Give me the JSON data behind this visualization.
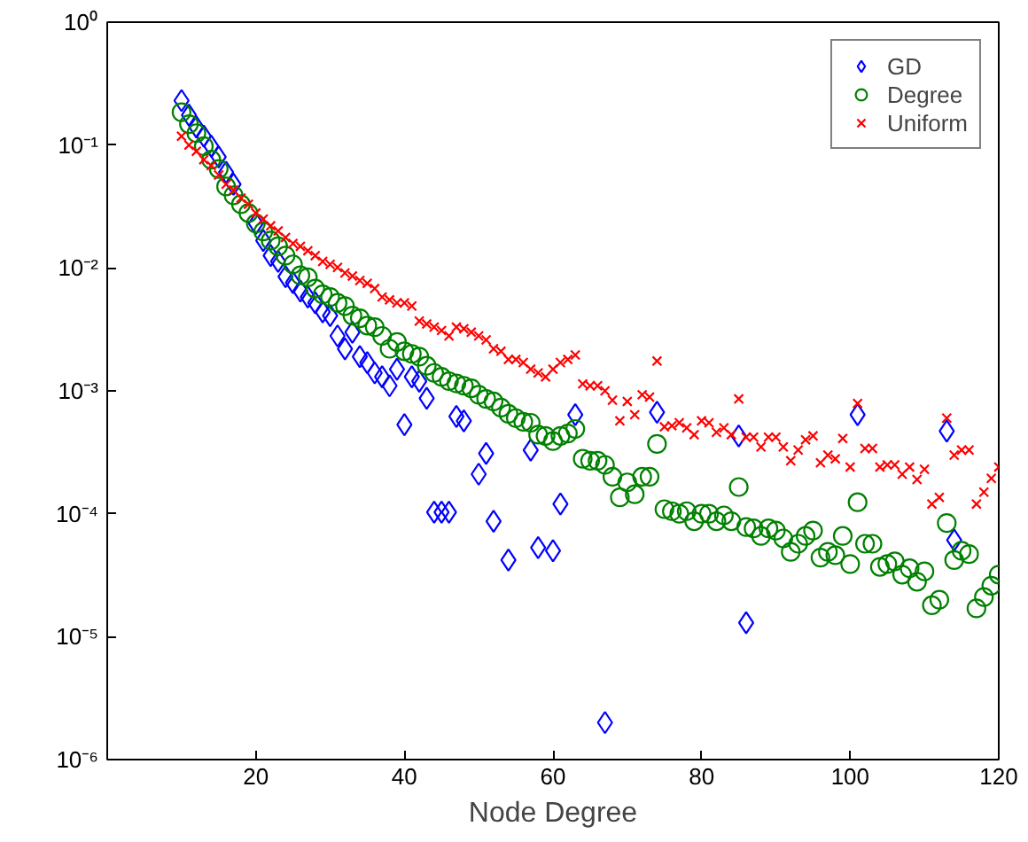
{
  "chart_data": {
    "type": "scatter",
    "xlabel": "Node Degree",
    "log": "y",
    "xlim": [
      0,
      120
    ],
    "xticks": [
      20,
      40,
      60,
      80,
      100,
      120
    ],
    "ylim": [
      1e-06,
      1
    ],
    "yticks": [
      {
        "value": 1e-06,
        "label": "10⁻⁶"
      },
      {
        "value": 1e-05,
        "label": "10⁻⁵"
      },
      {
        "value": 0.0001,
        "label": "10⁻⁴"
      },
      {
        "value": 0.001,
        "label": "10⁻³"
      },
      {
        "value": 0.01,
        "label": "10⁻²"
      },
      {
        "value": 0.1,
        "label": "10⁻¹"
      },
      {
        "value": 1,
        "label": "10⁰"
      }
    ],
    "grid": false,
    "legend": "top right",
    "series": [
      {
        "name": "GD",
        "color": "#0000ff",
        "marker": "diamond",
        "x": [
          10,
          11,
          12,
          13,
          14,
          15,
          16,
          17,
          18,
          19,
          20,
          21,
          22,
          23,
          24,
          25,
          26,
          27,
          28,
          29,
          30,
          31,
          32,
          33,
          34,
          35,
          36,
          37,
          38,
          39,
          40,
          41,
          42,
          43,
          44,
          45,
          46,
          47,
          48,
          50,
          51,
          52,
          54,
          57,
          58,
          60,
          61,
          63,
          67,
          74,
          85,
          86,
          101,
          113,
          114
        ],
        "values": [
          0.23,
          0.175,
          0.14,
          0.118,
          0.098,
          0.08,
          0.06,
          0.048,
          null,
          null,
          0.023,
          0.0167,
          0.0126,
          0.0113,
          0.0085,
          0.0076,
          0.0065,
          0.0058,
          0.0052,
          0.0044,
          0.0041,
          0.0028,
          0.0022,
          0.003,
          0.0019,
          0.0017,
          0.0014,
          0.0013,
          0.0011,
          0.0015,
          0.00053,
          0.0013,
          0.0012,
          0.00087,
          0.000103,
          0.000103,
          0.000103,
          0.00062,
          0.00057,
          0.00021,
          0.00031,
          8.7e-05,
          4.2e-05,
          0.00033,
          5.3e-05,
          5e-05,
          0.00012,
          0.00064,
          2e-06,
          0.00067,
          0.00043,
          1.3e-05,
          0.00064,
          0.00047,
          6.1e-05
        ]
      },
      {
        "name": "Degree",
        "color": "#008000",
        "marker": "circle",
        "x": [
          10,
          11,
          12,
          13,
          14,
          15,
          16,
          17,
          18,
          19,
          20,
          21,
          22,
          23,
          24,
          25,
          26,
          27,
          28,
          29,
          30,
          31,
          32,
          33,
          34,
          35,
          36,
          37,
          38,
          39,
          40,
          41,
          42,
          43,
          44,
          45,
          46,
          47,
          48,
          49,
          50,
          51,
          52,
          53,
          54,
          55,
          56,
          57,
          58,
          59,
          60,
          61,
          62,
          63,
          64,
          65,
          66,
          67,
          68,
          69,
          70,
          71,
          72,
          73,
          74,
          75,
          76,
          77,
          78,
          79,
          80,
          81,
          82,
          83,
          84,
          85,
          86,
          87,
          88,
          89,
          90,
          91,
          92,
          93,
          94,
          95,
          96,
          97,
          98,
          99,
          100,
          101,
          102,
          103,
          104,
          105,
          106,
          107,
          108,
          109,
          110,
          111,
          112,
          113,
          114,
          115,
          116,
          117,
          118,
          119,
          120
        ],
        "values": [
          0.185,
          0.148,
          0.125,
          0.098,
          0.076,
          0.064,
          0.046,
          0.039,
          0.033,
          0.028,
          0.023,
          0.0198,
          0.0167,
          0.015,
          0.0126,
          0.0107,
          0.0087,
          0.0084,
          0.0068,
          0.0061,
          0.0058,
          0.0052,
          0.0049,
          0.0041,
          0.0039,
          0.0034,
          0.0033,
          0.0028,
          0.0022,
          0.0025,
          0.0021,
          0.002,
          0.0019,
          0.0016,
          0.0014,
          0.0013,
          0.0012,
          0.00115,
          0.0011,
          0.00105,
          0.00093,
          0.00086,
          0.00082,
          0.00073,
          0.00065,
          0.0006,
          0.00056,
          0.00055,
          0.00044,
          0.00043,
          0.00039,
          0.00043,
          0.00045,
          0.00049,
          0.00028,
          0.00027,
          0.00027,
          0.00025,
          0.0002,
          0.000136,
          0.00018,
          0.000144,
          0.0002,
          0.0002,
          0.00037,
          0.000109,
          0.000105,
          0.0001,
          0.000105,
          8.7e-05,
          0.0001,
          0.0001,
          8.7e-05,
          9.7e-05,
          8.7e-05,
          0.000165,
          7.8e-05,
          7.6e-05,
          6.6e-05,
          7.6e-05,
          7.3e-05,
          6.3e-05,
          4.9e-05,
          5.7e-05,
          6.6e-05,
          7.3e-05,
          4.4e-05,
          4.9e-05,
          4.6e-05,
          6.6e-05,
          3.9e-05,
          0.000124,
          5.7e-05,
          5.7e-05,
          3.7e-05,
          3.9e-05,
          4.1e-05,
          3.2e-05,
          3.6e-05,
          2.8e-05,
          3.4e-05,
          1.8e-05,
          2e-05,
          8.4e-05,
          4.2e-05,
          5e-05,
          4.7e-05,
          1.7e-05,
          2.1e-05,
          2.6e-05,
          3.2e-05
        ]
      },
      {
        "name": "Uniform",
        "color": "#ff0000",
        "marker": "cross",
        "x": [
          10,
          11,
          12,
          13,
          14,
          15,
          16,
          17,
          18,
          19,
          20,
          21,
          22,
          23,
          24,
          25,
          26,
          27,
          28,
          29,
          30,
          31,
          32,
          33,
          34,
          35,
          36,
          37,
          38,
          39,
          40,
          41,
          42,
          43,
          44,
          45,
          46,
          47,
          48,
          49,
          50,
          51,
          52,
          53,
          54,
          55,
          56,
          57,
          58,
          59,
          60,
          61,
          62,
          63,
          64,
          65,
          66,
          67,
          68,
          69,
          70,
          71,
          72,
          73,
          74,
          75,
          76,
          77,
          78,
          79,
          80,
          81,
          82,
          83,
          84,
          85,
          86,
          87,
          88,
          89,
          90,
          91,
          92,
          93,
          94,
          95,
          96,
          97,
          98,
          99,
          100,
          101,
          102,
          103,
          104,
          105,
          106,
          107,
          108,
          109,
          110,
          111,
          112,
          113,
          114,
          115,
          116,
          117,
          118,
          119,
          120
        ],
        "values": [
          0.118,
          0.1,
          0.089,
          0.076,
          0.068,
          0.057,
          0.048,
          0.043,
          0.037,
          0.033,
          0.028,
          0.025,
          0.022,
          0.02,
          0.0177,
          0.0158,
          0.015,
          0.0138,
          0.0126,
          0.0113,
          0.0107,
          0.0101,
          0.0091,
          0.0086,
          0.0079,
          0.0075,
          0.0068,
          0.0058,
          0.0055,
          0.0052,
          0.0052,
          0.0049,
          0.0037,
          0.0035,
          0.0033,
          0.0031,
          0.0028,
          0.0033,
          0.0032,
          0.003,
          0.0028,
          0.0026,
          0.0022,
          0.0021,
          0.0018,
          0.0018,
          0.0017,
          0.0015,
          0.0014,
          0.0013,
          0.0015,
          0.0017,
          0.0018,
          0.00196,
          0.00114,
          0.0011,
          0.0011,
          0.001,
          0.00084,
          0.00057,
          0.00082,
          0.00064,
          0.00093,
          0.00089,
          0.00175,
          0.00051,
          0.00052,
          0.00055,
          0.0005,
          0.00044,
          0.00057,
          0.00055,
          0.00046,
          0.0005,
          0.00044,
          0.00086,
          0.00042,
          0.00042,
          0.00035,
          0.00042,
          0.00042,
          0.00035,
          0.00027,
          0.00033,
          0.0004,
          0.00043,
          0.00026,
          0.0003,
          0.00028,
          0.00041,
          0.00024,
          0.00079,
          0.00034,
          0.00034,
          0.00024,
          0.00025,
          0.00025,
          0.00021,
          0.00024,
          0.00019,
          0.00023,
          0.00012,
          0.000136,
          0.0006,
          0.0003,
          0.00033,
          0.00033,
          0.00012,
          0.00015,
          0.000194,
          0.00024
        ]
      }
    ]
  }
}
